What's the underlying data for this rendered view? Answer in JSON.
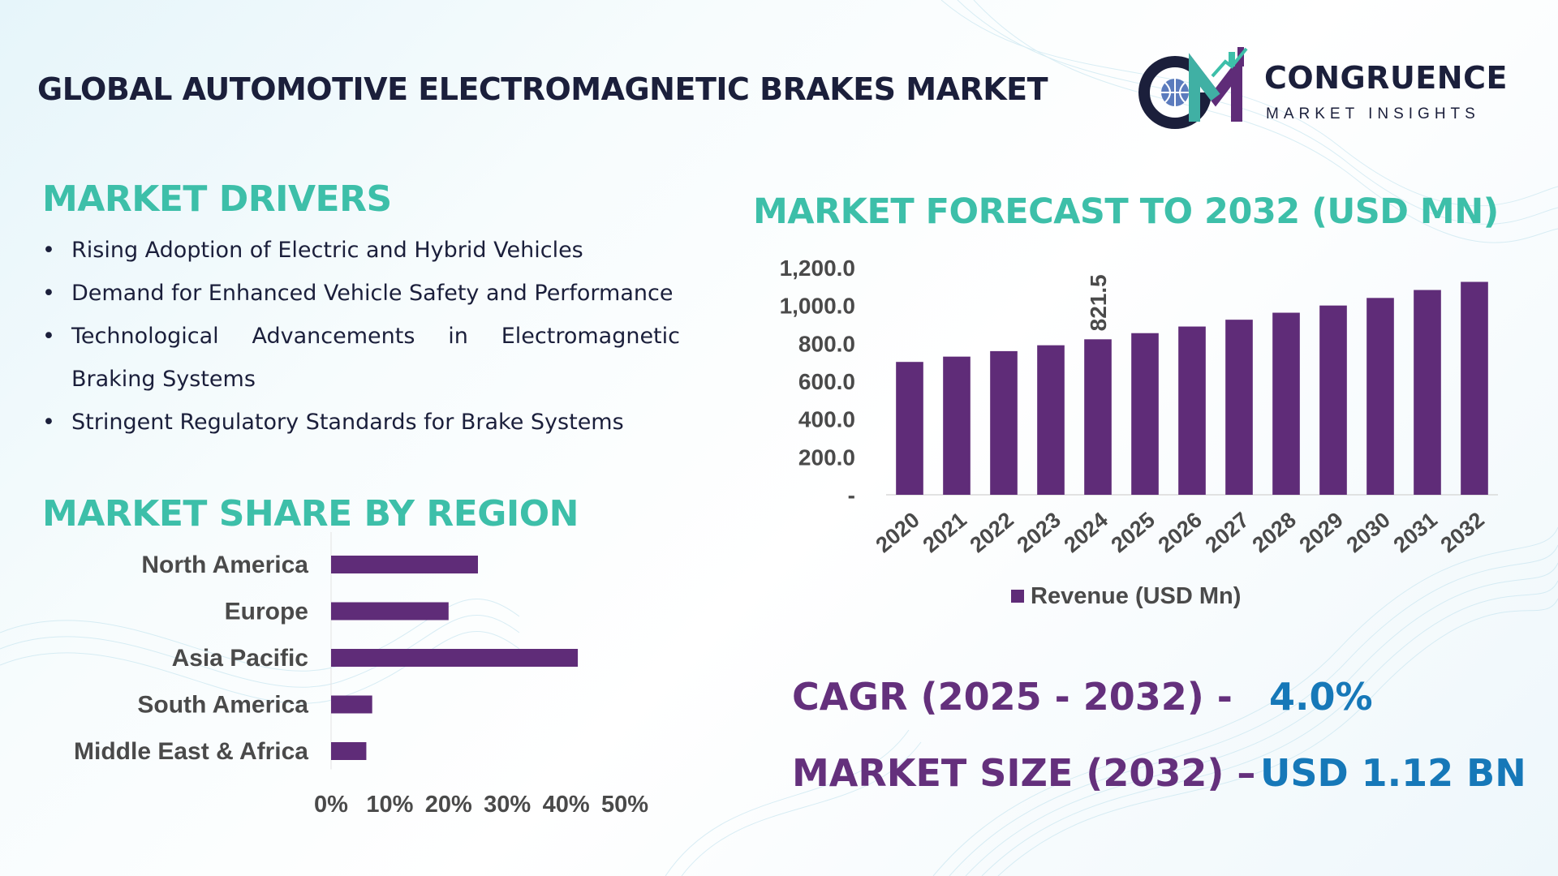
{
  "header": {
    "title": "GLOBAL AUTOMOTIVE ELECTROMAGNETIC BRAKES MARKET"
  },
  "logo": {
    "name": "CONGRUENCE",
    "subtitle": "MARKET INSIGHTS",
    "icon": "cm-logo-icon"
  },
  "drivers": {
    "title": "MARKET DRIVERS",
    "items": [
      "Rising Adoption of Electric and Hybrid Vehicles",
      "Demand for Enhanced Vehicle Safety and Performance",
      "Technological Advancements in Electromagnetic Braking Systems",
      "Stringent Regulatory Standards for Brake Systems"
    ]
  },
  "region": {
    "title": "MARKET SHARE BY REGION"
  },
  "forecast": {
    "title": "MARKET FORECAST TO 2032 (USD MN)"
  },
  "kpis": {
    "cagr_label": "CAGR (2025 - 2032) -",
    "cagr_value": "4.0%",
    "size_label": "MARKET SIZE (2032) –",
    "size_value": "USD 1.12 BN"
  },
  "colors": {
    "bar": "#5f2c78",
    "accent_teal": "#3dbfa9",
    "kpi_purple": "#64307c",
    "kpi_blue": "#1678b8",
    "title_dark": "#1b1f3b"
  },
  "chart_data": [
    {
      "type": "bar",
      "orientation": "vertical",
      "title": "MARKET FORECAST TO 2032 (USD MN)",
      "categories": [
        "2020",
        "2021",
        "2022",
        "2023",
        "2024",
        "2025",
        "2026",
        "2027",
        "2028",
        "2029",
        "2030",
        "2031",
        "2032"
      ],
      "series": [
        {
          "name": "Revenue (USD Mn)",
          "values": [
            702,
            730,
            759,
            790,
            821.5,
            854,
            889,
            925,
            962,
            1000,
            1040,
            1082,
            1125
          ]
        }
      ],
      "data_labels": [
        {
          "category": "2024",
          "label": "821.5"
        }
      ],
      "y_ticks": [
        "-",
        "200.0",
        "400.0",
        "600.0",
        "800.0",
        "1,000.0",
        "1,200.0"
      ],
      "ylim": [
        0,
        1200
      ],
      "legend": "bottom",
      "grid": false
    },
    {
      "type": "bar",
      "orientation": "horizontal",
      "title": "MARKET SHARE BY REGION",
      "categories": [
        "North America",
        "Europe",
        "Asia Pacific",
        "South America",
        "Middle East & Africa"
      ],
      "values": [
        25,
        20,
        42,
        7,
        6
      ],
      "x_ticks": [
        "0%",
        "10%",
        "20%",
        "30%",
        "40%",
        "50%"
      ],
      "xlim": [
        0,
        50
      ],
      "grid": false
    }
  ]
}
